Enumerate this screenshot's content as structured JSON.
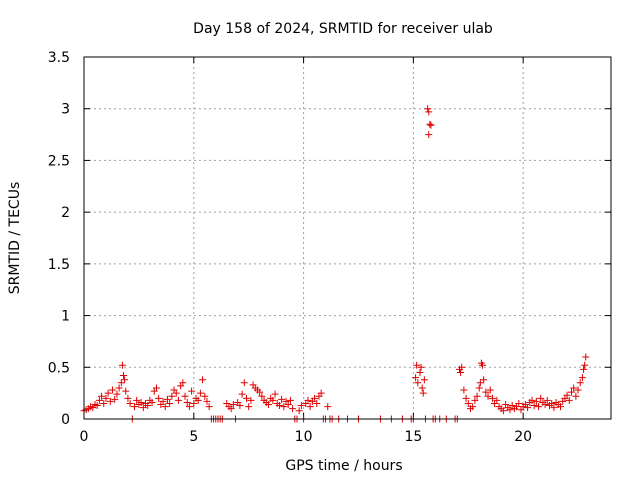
{
  "chart_data": {
    "type": "scatter",
    "title": "Day 158 of 2024, SRMTID for receiver ulab",
    "xlabel": "GPS time / hours",
    "ylabel": "SRMTID / TECUs",
    "xlim": [
      0,
      24
    ],
    "ylim": [
      0,
      3.5
    ],
    "x_ticks": [
      0,
      5,
      10,
      15,
      20
    ],
    "x_tick_labels": [
      "0",
      "5",
      "10",
      "15",
      "20"
    ],
    "y_ticks": [
      0,
      0.5,
      1,
      1.5,
      2,
      2.5,
      3,
      3.5
    ],
    "y_tick_labels": [
      "0",
      "0.5",
      "1",
      "1.5",
      "2",
      "2.5",
      "3",
      "3.5"
    ],
    "grid": true,
    "marker": "+",
    "color": "#e00000",
    "series": [
      {
        "name": "ulab",
        "points": [
          [
            0.0,
            0.08
          ],
          [
            0.1,
            0.09
          ],
          [
            0.2,
            0.1
          ],
          [
            0.3,
            0.12
          ],
          [
            0.4,
            0.11
          ],
          [
            0.5,
            0.14
          ],
          [
            0.6,
            0.13
          ],
          [
            0.7,
            0.18
          ],
          [
            0.8,
            0.22
          ],
          [
            0.9,
            0.15
          ],
          [
            1.0,
            0.2
          ],
          [
            1.1,
            0.25
          ],
          [
            1.2,
            0.17
          ],
          [
            1.3,
            0.28
          ],
          [
            1.4,
            0.19
          ],
          [
            1.5,
            0.24
          ],
          [
            1.6,
            0.3
          ],
          [
            1.7,
            0.35
          ],
          [
            1.75,
            0.52
          ],
          [
            1.8,
            0.42
          ],
          [
            1.85,
            0.38
          ],
          [
            1.9,
            0.27
          ],
          [
            2.0,
            0.2
          ],
          [
            2.1,
            0.15
          ],
          [
            2.2,
            0.0
          ],
          [
            2.3,
            0.12
          ],
          [
            2.4,
            0.18
          ],
          [
            2.5,
            0.14
          ],
          [
            2.6,
            0.16
          ],
          [
            2.7,
            0.11
          ],
          [
            2.8,
            0.15
          ],
          [
            2.9,
            0.13
          ],
          [
            3.0,
            0.18
          ],
          [
            3.1,
            0.16
          ],
          [
            3.2,
            0.27
          ],
          [
            3.3,
            0.3
          ],
          [
            3.4,
            0.2
          ],
          [
            3.5,
            0.14
          ],
          [
            3.6,
            0.17
          ],
          [
            3.7,
            0.12
          ],
          [
            3.8,
            0.19
          ],
          [
            3.9,
            0.15
          ],
          [
            4.0,
            0.22
          ],
          [
            4.1,
            0.28
          ],
          [
            4.2,
            0.25
          ],
          [
            4.3,
            0.18
          ],
          [
            4.4,
            0.32
          ],
          [
            4.5,
            0.35
          ],
          [
            4.6,
            0.22
          ],
          [
            4.7,
            0.16
          ],
          [
            4.8,
            0.12
          ],
          [
            4.9,
            0.27
          ],
          [
            5.0,
            0.15
          ],
          [
            5.1,
            0.2
          ],
          [
            5.2,
            0.18
          ],
          [
            5.3,
            0.25
          ],
          [
            5.4,
            0.38
          ],
          [
            5.5,
            0.22
          ],
          [
            5.6,
            0.17
          ],
          [
            5.7,
            0.12
          ],
          [
            5.8,
            0.0
          ],
          [
            5.9,
            0.0
          ],
          [
            6.0,
            0.0
          ],
          [
            6.1,
            0.0
          ],
          [
            6.2,
            0.0
          ],
          [
            6.3,
            0.0
          ],
          [
            6.5,
            0.15
          ],
          [
            6.6,
            0.12
          ],
          [
            6.7,
            0.1
          ],
          [
            6.8,
            0.14
          ],
          [
            6.9,
            0.0
          ],
          [
            7.0,
            0.16
          ],
          [
            7.1,
            0.13
          ],
          [
            7.2,
            0.24
          ],
          [
            7.3,
            0.35
          ],
          [
            7.4,
            0.2
          ],
          [
            7.5,
            0.12
          ],
          [
            7.6,
            0.18
          ],
          [
            7.7,
            0.33
          ],
          [
            7.8,
            0.3
          ],
          [
            7.9,
            0.28
          ],
          [
            8.0,
            0.26
          ],
          [
            8.1,
            0.22
          ],
          [
            8.2,
            0.18
          ],
          [
            8.3,
            0.16
          ],
          [
            8.4,
            0.14
          ],
          [
            8.5,
            0.2
          ],
          [
            8.6,
            0.18
          ],
          [
            8.7,
            0.24
          ],
          [
            8.8,
            0.15
          ],
          [
            8.9,
            0.13
          ],
          [
            9.0,
            0.19
          ],
          [
            9.1,
            0.12
          ],
          [
            9.2,
            0.17
          ],
          [
            9.3,
            0.14
          ],
          [
            9.4,
            0.18
          ],
          [
            9.5,
            0.1
          ],
          [
            9.6,
            0.0
          ],
          [
            9.7,
            0.0
          ],
          [
            9.8,
            0.08
          ],
          [
            9.9,
            0.13
          ],
          [
            10.0,
            0.0
          ],
          [
            10.1,
            0.15
          ],
          [
            10.2,
            0.18
          ],
          [
            10.3,
            0.12
          ],
          [
            10.4,
            0.17
          ],
          [
            10.5,
            0.2
          ],
          [
            10.6,
            0.15
          ],
          [
            10.7,
            0.22
          ],
          [
            10.8,
            0.25
          ],
          [
            10.9,
            0.0
          ],
          [
            11.0,
            0.0
          ],
          [
            11.1,
            0.12
          ],
          [
            11.2,
            0.0
          ],
          [
            11.3,
            0.0
          ],
          [
            11.6,
            0.0
          ],
          [
            12.0,
            0.0
          ],
          [
            12.5,
            0.0
          ],
          [
            13.5,
            0.0
          ],
          [
            14.0,
            0.0
          ],
          [
            14.5,
            0.0
          ],
          [
            14.9,
            0.0
          ],
          [
            15.0,
            0.0
          ],
          [
            15.1,
            0.4
          ],
          [
            15.15,
            0.52
          ],
          [
            15.2,
            0.35
          ],
          [
            15.3,
            0.45
          ],
          [
            15.35,
            0.5
          ],
          [
            15.4,
            0.3
          ],
          [
            15.45,
            0.25
          ],
          [
            15.5,
            0.38
          ],
          [
            15.55,
            0.0
          ],
          [
            15.65,
            3.0
          ],
          [
            15.7,
            2.97
          ],
          [
            15.75,
            2.85
          ],
          [
            15.8,
            2.84
          ],
          [
            15.7,
            2.75
          ],
          [
            15.9,
            0.0
          ],
          [
            16.0,
            0.0
          ],
          [
            16.2,
            0.0
          ],
          [
            16.5,
            0.0
          ],
          [
            16.9,
            0.0
          ],
          [
            17.0,
            0.0
          ],
          [
            17.1,
            0.48
          ],
          [
            17.15,
            0.45
          ],
          [
            17.2,
            0.5
          ],
          [
            17.3,
            0.28
          ],
          [
            17.4,
            0.2
          ],
          [
            17.5,
            0.15
          ],
          [
            17.6,
            0.1
          ],
          [
            17.7,
            0.12
          ],
          [
            17.8,
            0.18
          ],
          [
            17.9,
            0.22
          ],
          [
            18.0,
            0.3
          ],
          [
            18.05,
            0.35
          ],
          [
            18.1,
            0.54
          ],
          [
            18.15,
            0.52
          ],
          [
            18.2,
            0.38
          ],
          [
            18.3,
            0.26
          ],
          [
            18.4,
            0.22
          ],
          [
            18.5,
            0.28
          ],
          [
            18.6,
            0.2
          ],
          [
            18.7,
            0.15
          ],
          [
            18.8,
            0.18
          ],
          [
            18.9,
            0.12
          ],
          [
            19.0,
            0.1
          ],
          [
            19.1,
            0.08
          ],
          [
            19.2,
            0.14
          ],
          [
            19.3,
            0.11
          ],
          [
            19.4,
            0.09
          ],
          [
            19.5,
            0.13
          ],
          [
            19.6,
            0.1
          ],
          [
            19.7,
            0.12
          ],
          [
            19.8,
            0.15
          ],
          [
            19.9,
            0.09
          ],
          [
            20.0,
            0.12
          ],
          [
            20.1,
            0.14
          ],
          [
            20.2,
            0.11
          ],
          [
            20.3,
            0.16
          ],
          [
            20.4,
            0.18
          ],
          [
            20.5,
            0.13
          ],
          [
            20.6,
            0.17
          ],
          [
            20.7,
            0.12
          ],
          [
            20.8,
            0.2
          ],
          [
            20.9,
            0.16
          ],
          [
            21.0,
            0.14
          ],
          [
            21.1,
            0.18
          ],
          [
            21.2,
            0.13
          ],
          [
            21.3,
            0.15
          ],
          [
            21.4,
            0.11
          ],
          [
            21.5,
            0.16
          ],
          [
            21.6,
            0.14
          ],
          [
            21.7,
            0.12
          ],
          [
            21.8,
            0.17
          ],
          [
            21.9,
            0.2
          ],
          [
            22.0,
            0.23
          ],
          [
            22.1,
            0.18
          ],
          [
            22.2,
            0.26
          ],
          [
            22.3,
            0.3
          ],
          [
            22.4,
            0.22
          ],
          [
            22.5,
            0.28
          ],
          [
            22.6,
            0.35
          ],
          [
            22.7,
            0.4
          ],
          [
            22.75,
            0.48
          ],
          [
            22.8,
            0.52
          ],
          [
            22.85,
            0.6
          ]
        ]
      }
    ]
  }
}
